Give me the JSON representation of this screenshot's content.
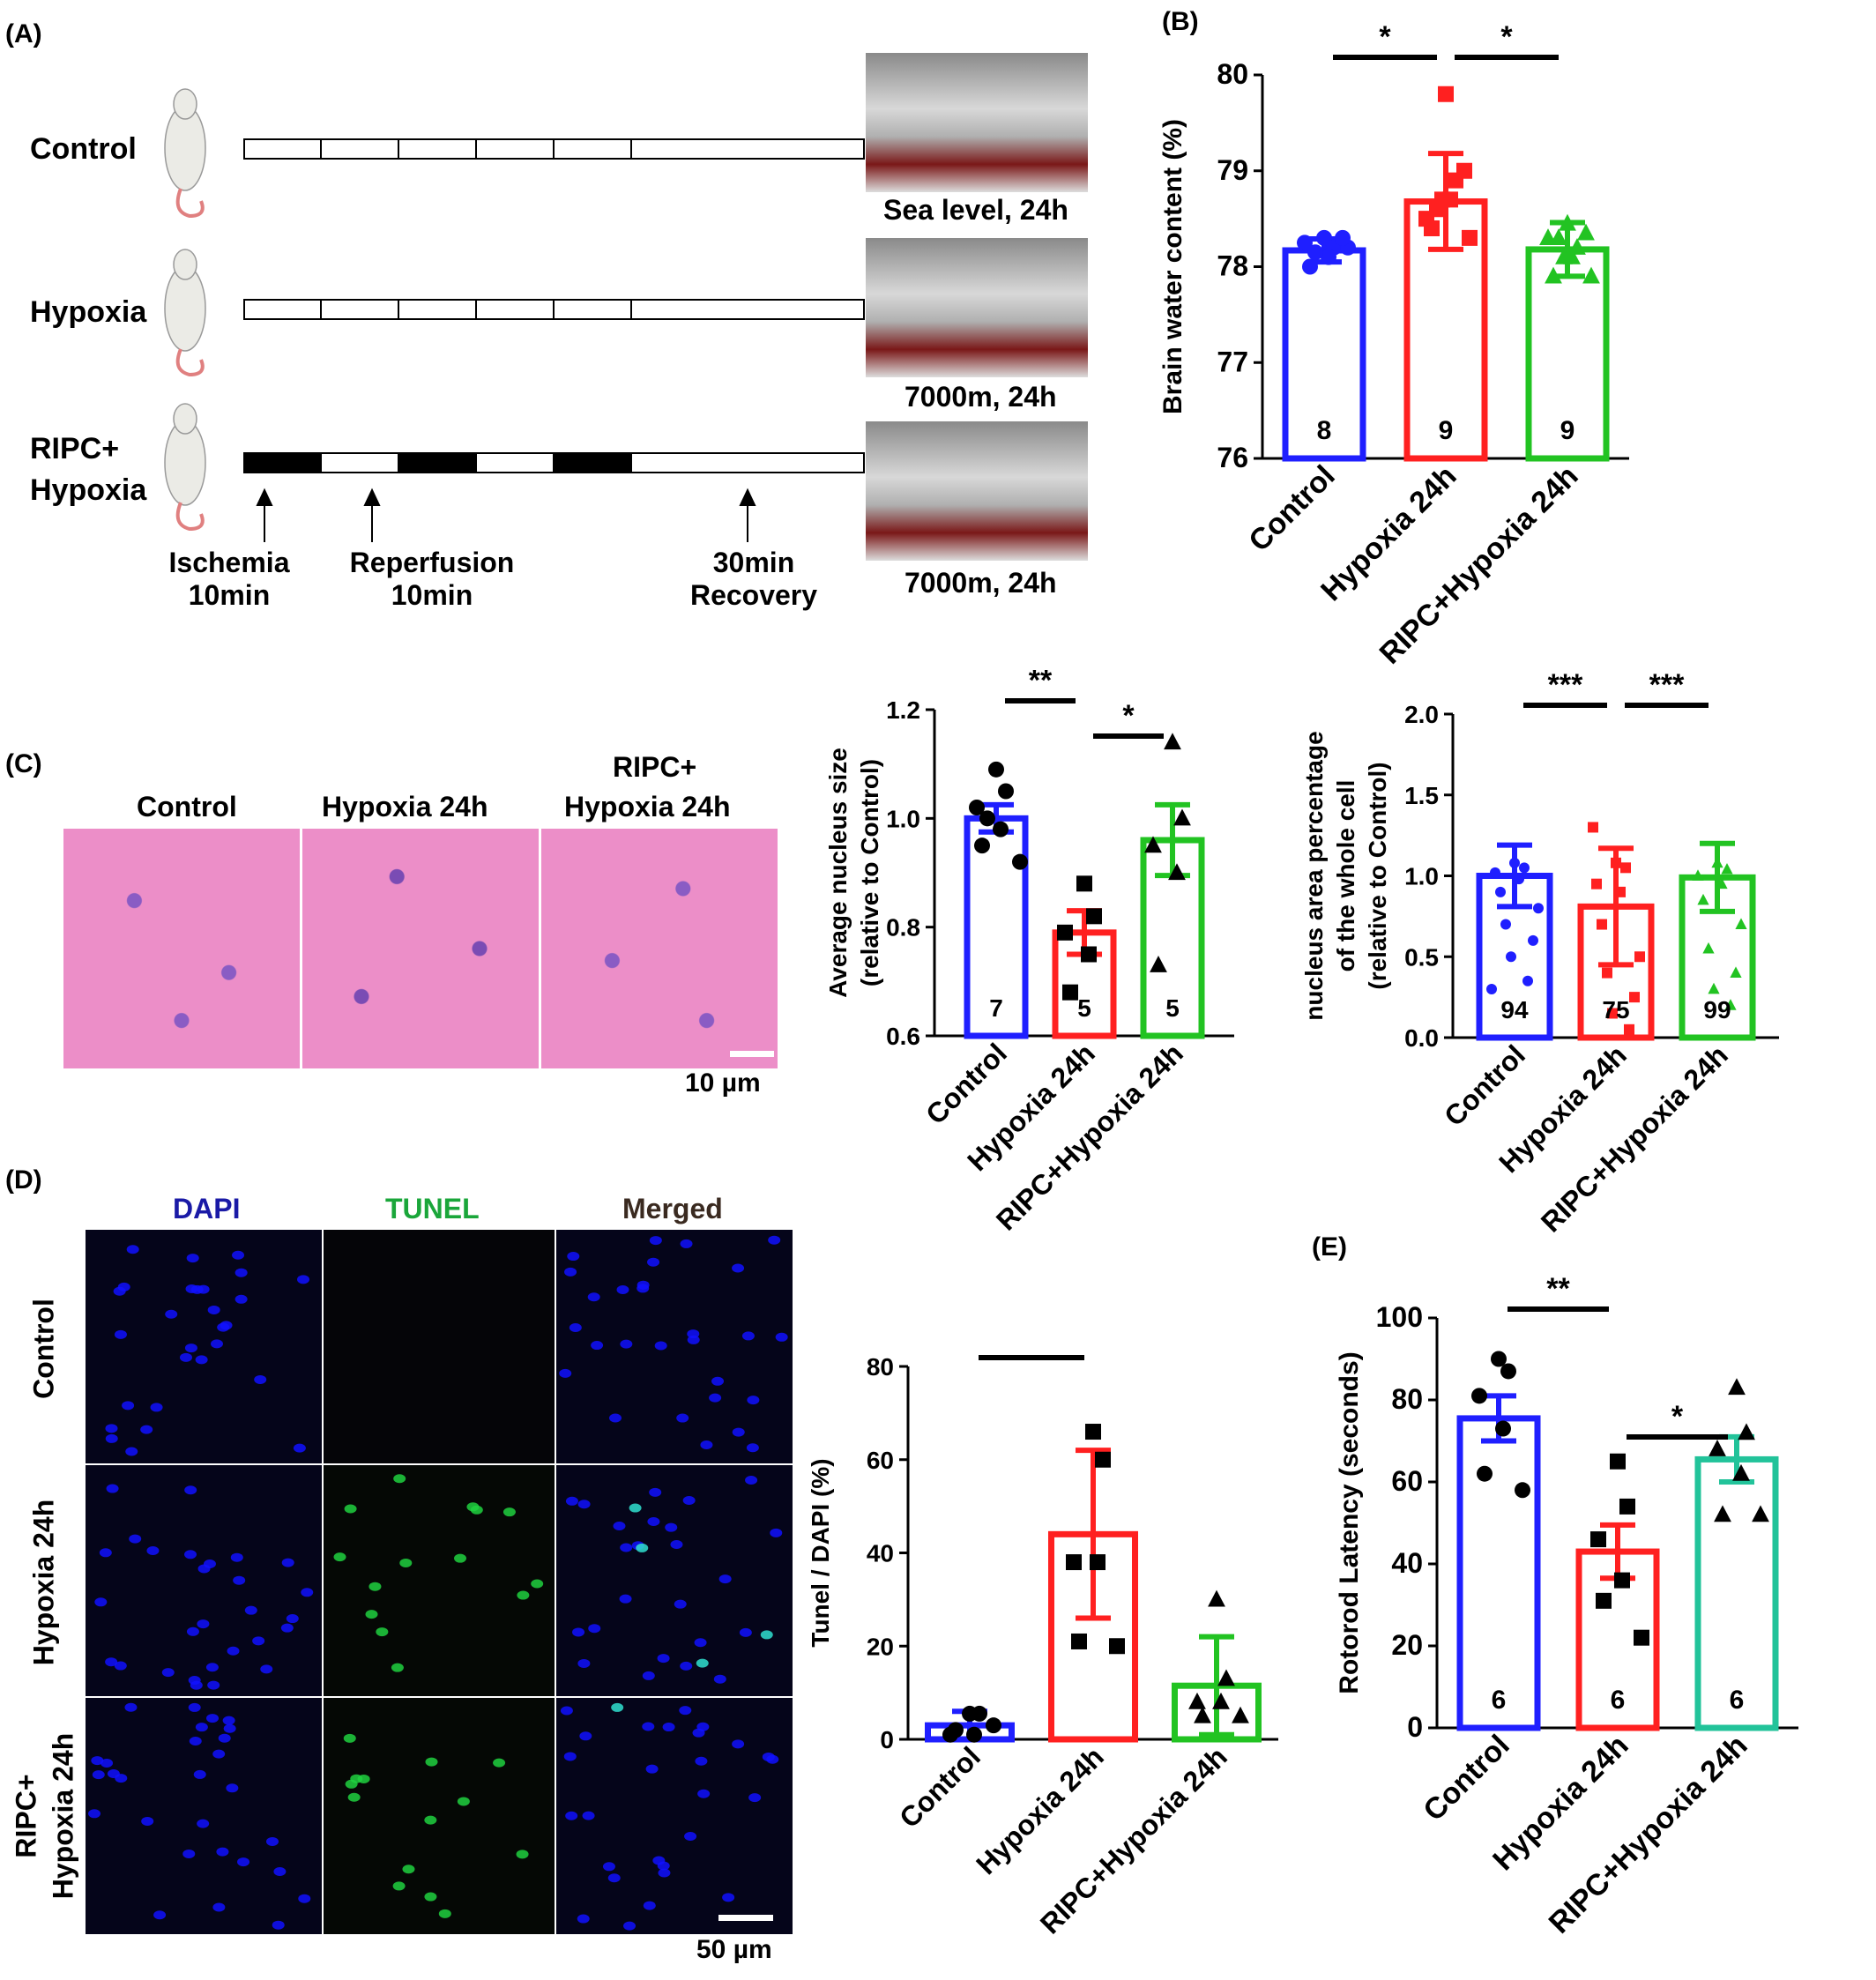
{
  "panels": {
    "a": "(A)",
    "b": "(B)",
    "c": "(C)",
    "d": "(D)",
    "e": "(E)"
  },
  "schematic": {
    "groups": [
      "Control",
      "Hypoxia",
      "RIPC+",
      "Hypoxia"
    ],
    "chamber_captions": [
      "Sea level, 24h",
      "7000m, 24h",
      "7000m, 24h"
    ],
    "arrow_labels": [
      {
        "line1": "Ischemia",
        "line2": "10min"
      },
      {
        "line1": "Reperfusion",
        "line2": "10min"
      },
      {
        "line1": "30min",
        "line2": "Recovery"
      }
    ]
  },
  "histology": {
    "titles": [
      "Control",
      "Hypoxia 24h",
      "RIPC+",
      "Hypoxia 24h"
    ],
    "scale_bar": "10 µm"
  },
  "fluorescence": {
    "channels": [
      "DAPI",
      "TUNEL",
      "Merged"
    ],
    "channel_colors": [
      "#1a1aa6",
      "#1aa63a",
      "#3a2a20"
    ],
    "rows": [
      "Control",
      "Hypoxia 24h",
      "RIPC+",
      "Hypoxia 24h"
    ],
    "scale_bar": "50 µm"
  },
  "chart_data": [
    {
      "id": "B",
      "type": "bar",
      "categories": [
        "Control",
        "Hypoxia 24h",
        "RIPC+Hypoxia 24h"
      ],
      "values": [
        78.17,
        78.68,
        78.18
      ],
      "errors": [
        0.12,
        0.5,
        0.28
      ],
      "n": [
        "8",
        "9",
        "9"
      ],
      "points": [
        [
          78.3,
          78.2,
          78.25,
          78.1,
          78.0,
          78.2,
          78.15,
          78.3
        ],
        [
          79.8,
          78.9,
          78.5,
          78.7,
          78.4,
          78.3,
          78.6,
          79.0,
          78.7
        ],
        [
          78.45,
          78.2,
          78.3,
          78.1,
          77.9,
          77.9,
          78.3,
          78.35,
          78.1
        ]
      ],
      "markers": [
        "circle",
        "square",
        "triangle"
      ],
      "colors": [
        "#1f1fff",
        "#ff2020",
        "#22c322"
      ],
      "ylabel": "Brain water content (%)",
      "ylim": [
        76,
        80
      ],
      "yticks": [
        "76",
        "77",
        "78",
        "79",
        "80"
      ],
      "sig": [
        {
          "from": 0,
          "to": 1,
          "text": "*"
        },
        {
          "from": 1,
          "to": 2,
          "text": "*"
        }
      ]
    },
    {
      "id": "C1",
      "type": "bar",
      "categories": [
        "Control",
        "Hypoxia 24h",
        "RIPC+Hypoxia 24h"
      ],
      "values": [
        1.0,
        0.79,
        0.96
      ],
      "errors": [
        0.025,
        0.04,
        0.065
      ],
      "n": [
        "7",
        "5",
        "5"
      ],
      "points": [
        [
          1.09,
          1.05,
          1.02,
          0.98,
          0.95,
          0.92,
          1.0
        ],
        [
          0.88,
          0.82,
          0.79,
          0.75,
          0.68
        ],
        [
          1.14,
          1.0,
          0.95,
          0.9,
          0.73
        ]
      ],
      "markers": [
        "circle",
        "square",
        "triangle"
      ],
      "colors": [
        "#1f1fff",
        "#ff2020",
        "#22c322"
      ],
      "ylabel": [
        "Average nucleus size",
        "(relative to Control)"
      ],
      "ylim": [
        0.6,
        1.2
      ],
      "yticks": [
        "0.6",
        "0.8",
        "1.0",
        "1.2"
      ],
      "sig": [
        {
          "from": 0,
          "to": 1,
          "text": "**"
        },
        {
          "from": 1,
          "to": 2,
          "text": "*"
        }
      ]
    },
    {
      "id": "C2",
      "type": "bar",
      "categories": [
        "Control",
        "Hypoxia 24h",
        "RIPC+Hypoxia 24h"
      ],
      "values": [
        1.0,
        0.81,
        0.99
      ],
      "errors": [
        0.19,
        0.36,
        0.21
      ],
      "n": [
        "94",
        "75",
        "99"
      ],
      "points": [
        [
          1.08,
          1.05,
          1.02,
          0.98,
          0.9,
          0.8,
          0.7,
          0.6,
          0.5,
          0.35,
          0.3
        ],
        [
          1.08,
          1.05,
          0.95,
          0.9,
          0.7,
          0.5,
          0.4,
          0.25,
          0.15,
          0.05,
          1.3
        ],
        [
          1.08,
          1.04,
          1.0,
          0.95,
          0.85,
          0.7,
          0.55,
          0.4,
          0.3,
          0.2
        ]
      ],
      "markers": [
        "circle",
        "square",
        "triangle"
      ],
      "colors": [
        "#1f1fff",
        "#ff2020",
        "#22c322"
      ],
      "ylabel": [
        "nucleus area percentage",
        "of the whole cell",
        "(relative to Control)"
      ],
      "ylim": [
        0,
        2.0
      ],
      "yticks": [
        "0.0",
        "0.5",
        "1.0",
        "1.5",
        "2.0"
      ],
      "sig": [
        {
          "from": 0,
          "to": 1,
          "text": "***"
        },
        {
          "from": 1,
          "to": 2,
          "text": "***"
        }
      ]
    },
    {
      "id": "D",
      "type": "bar",
      "categories": [
        "Control",
        "Hypoxia 24h",
        "RIPC+Hypoxia 24h"
      ],
      "values": [
        3.0,
        44.0,
        11.5
      ],
      "errors": [
        3.0,
        18.0,
        10.5
      ],
      "n": [
        "",
        "",
        ""
      ],
      "points": [
        [
          5.5,
          5.5,
          1.0,
          1.0,
          2.0,
          3.0
        ],
        [
          66.0,
          60.0,
          38.0,
          38.0,
          21.0,
          20.0
        ],
        [
          30.0,
          13.0,
          8.0,
          8.0,
          5.0,
          5.0
        ]
      ],
      "markers": [
        "circle",
        "square",
        "triangle"
      ],
      "colors": [
        "#1f1fff",
        "#ff2020",
        "#22c322"
      ],
      "ylabel": "Tunel / DAPI (%)",
      "ylim": [
        0,
        80
      ],
      "yticks": [
        "0",
        "20",
        "40",
        "60",
        "80"
      ],
      "sig": [
        {
          "from": 0,
          "to": 1,
          "text": "**"
        }
      ]
    },
    {
      "id": "E",
      "type": "bar",
      "categories": [
        "Control",
        "Hypoxia 24h",
        "RIPC+Hypoxia 24h"
      ],
      "values": [
        75.5,
        43.0,
        65.5
      ],
      "errors": [
        5.5,
        6.5,
        5.5
      ],
      "n": [
        "6",
        "6",
        "6"
      ],
      "points": [
        [
          90.0,
          87.0,
          81.0,
          73.0,
          62.0,
          58.0
        ],
        [
          65.0,
          54.0,
          46.0,
          36.0,
          31.0,
          22.0
        ],
        [
          83.0,
          72.0,
          68.0,
          62.0,
          52.0,
          52.0
        ]
      ],
      "markers": [
        "circle",
        "square",
        "triangle"
      ],
      "colors": [
        "#1f1fff",
        "#ff2020",
        "#22c39a"
      ],
      "ylabel": "Rotorod Latency (seconds)",
      "ylim": [
        0,
        100
      ],
      "yticks": [
        "0",
        "20",
        "40",
        "60",
        "80",
        "100"
      ],
      "sig": [
        {
          "from": 0,
          "to": 1,
          "text": "**"
        },
        {
          "from": 1,
          "to": 2,
          "text": "*"
        }
      ]
    }
  ]
}
